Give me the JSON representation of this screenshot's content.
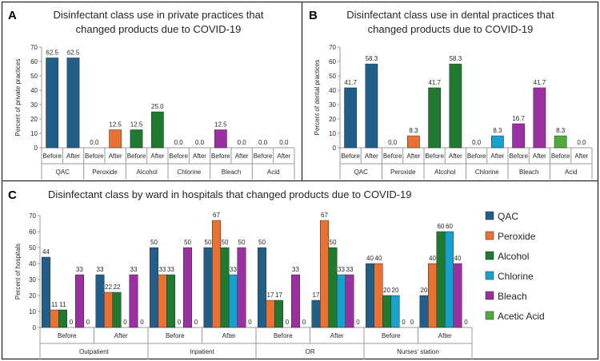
{
  "colors": {
    "qac": "#215f8a",
    "peroxide": "#e97131",
    "alcohol": "#1f7a30",
    "chlorine": "#16a2cf",
    "bleach": "#9c2fa2",
    "acid": "#4eaa3c"
  },
  "chart_data": [
    {
      "id": "A",
      "type": "bar",
      "panel_letter": "A",
      "title": [
        "Disinfectant class use in private practices that",
        "changed products due to COVID-19"
      ],
      "ylabel": "Percent of private practices",
      "ylim": [
        0,
        70
      ],
      "yticks": [
        "0",
        "10",
        "20",
        "30",
        "40",
        "50",
        "60",
        "70"
      ],
      "groups": [
        "QAC",
        "Peroxide",
        "Alcohol",
        "Chlorine",
        "Bleach",
        "Acid"
      ],
      "subcategories": [
        "Before",
        "After"
      ],
      "group_color_keys": [
        "qac",
        "peroxide",
        "alcohol",
        "chlorine",
        "bleach",
        "acid"
      ],
      "values": [
        [
          62.5,
          62.5
        ],
        [
          0,
          12.5
        ],
        [
          12.5,
          25
        ],
        [
          0,
          0
        ],
        [
          12.5,
          0
        ],
        [
          0,
          0
        ]
      ],
      "labels": [
        [
          "62.5",
          "62.5"
        ],
        [
          "0.0",
          "12.5"
        ],
        [
          "12.5",
          "25.0"
        ],
        [
          "0.0",
          "0.0"
        ],
        [
          "12.5",
          "0.0"
        ],
        [
          "0.0",
          "0.0"
        ]
      ]
    },
    {
      "id": "B",
      "type": "bar",
      "panel_letter": "B",
      "title": [
        "Disinfectant class use in dental practices that",
        "changed products due to COVID-19"
      ],
      "ylabel": "Percent of dental practices",
      "ylim": [
        0,
        70
      ],
      "yticks": [
        "0",
        "10",
        "20",
        "30",
        "40",
        "50",
        "60",
        "70"
      ],
      "groups": [
        "QAC",
        "Peroxide",
        "Alcohol",
        "Chlorine",
        "Bleach",
        "Acid"
      ],
      "subcategories": [
        "Before",
        "After"
      ],
      "group_color_keys": [
        "qac",
        "peroxide",
        "alcohol",
        "chlorine",
        "bleach",
        "acid"
      ],
      "values": [
        [
          41.7,
          58.3
        ],
        [
          0,
          8.3
        ],
        [
          41.7,
          58.3
        ],
        [
          0,
          8.3
        ],
        [
          16.7,
          41.7
        ],
        [
          8.3,
          0
        ]
      ],
      "labels": [
        [
          "41.7",
          "58.3"
        ],
        [
          "0.0",
          "8.3"
        ],
        [
          "41.7",
          "58.3"
        ],
        [
          "0.0",
          "8.3"
        ],
        [
          "16.7",
          "41.7"
        ],
        [
          "8.3",
          "0.0"
        ]
      ]
    },
    {
      "id": "C",
      "type": "bar",
      "panel_letter": "C",
      "title": [
        "Disinfectant class by ward in hospitals that changed products due to COVID-19"
      ],
      "ylabel": "Percent of hospitals",
      "ylim": [
        0,
        70
      ],
      "yticks": [
        "0",
        "10",
        "20",
        "30",
        "40",
        "50",
        "60",
        "70"
      ],
      "groups": [
        "Outpatient",
        "Inpatient",
        "OR",
        "Nurses' station"
      ],
      "subcategories": [
        "Before",
        "After"
      ],
      "series": [
        {
          "name": "QAC",
          "color_key": "qac",
          "values": [
            44,
            33,
            50,
            50,
            50,
            17,
            40,
            20
          ],
          "labels": [
            "44",
            "33",
            "50",
            "50",
            "50",
            "17",
            "40",
            "20"
          ]
        },
        {
          "name": "Peroxide",
          "color_key": "peroxide",
          "values": [
            11,
            22,
            33,
            67,
            17,
            67,
            40,
            40
          ],
          "labels": [
            "11",
            "22",
            "33",
            "67",
            "17",
            "67",
            "40",
            "40"
          ]
        },
        {
          "name": "Alcohol",
          "color_key": "alcohol",
          "values": [
            11,
            22,
            33,
            50,
            17,
            50,
            20,
            60
          ],
          "labels": [
            "11",
            "22",
            "33",
            "50",
            "17",
            "50",
            "20",
            "60"
          ]
        },
        {
          "name": "Chlorine",
          "color_key": "chlorine",
          "values": [
            0,
            0,
            0,
            33,
            0,
            33,
            20,
            60
          ],
          "labels": [
            "0",
            "0",
            "0",
            "33",
            "0",
            "33",
            "20",
            "60"
          ]
        },
        {
          "name": "Bleach",
          "color_key": "bleach",
          "values": [
            33,
            33,
            50,
            50,
            33,
            33,
            0,
            40
          ],
          "labels": [
            "33",
            "33",
            "50",
            "50",
            "33",
            "33",
            "0",
            "40"
          ]
        },
        {
          "name": "Acetic Acid",
          "color_key": "acid",
          "values": [
            0,
            0,
            0,
            0,
            0,
            0,
            0,
            0
          ],
          "labels": [
            "0",
            "0",
            "0",
            "0",
            "0",
            "0",
            "0",
            "0"
          ]
        }
      ]
    }
  ],
  "legend": [
    {
      "label": "QAC",
      "color_key": "qac"
    },
    {
      "label": "Peroxide",
      "color_key": "peroxide"
    },
    {
      "label": "Alcohol",
      "color_key": "alcohol"
    },
    {
      "label": "Chlorine",
      "color_key": "chlorine"
    },
    {
      "label": "Bleach",
      "color_key": "bleach"
    },
    {
      "label": "Acetic Acid",
      "color_key": "acid"
    }
  ]
}
